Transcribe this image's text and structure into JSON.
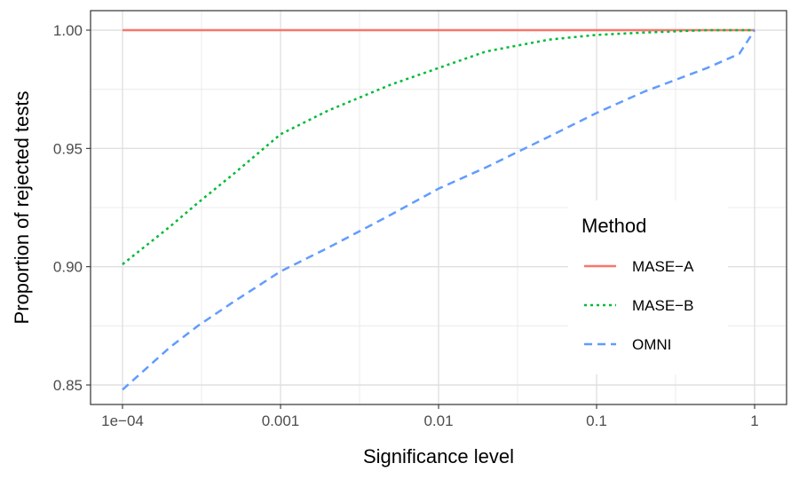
{
  "chart_data": {
    "type": "line",
    "xlabel": "Significance level",
    "ylabel": "Proportion of rejected tests",
    "x_scale": "log10",
    "xlim": [
      0.0001,
      1
    ],
    "ylim": [
      0.85,
      1.0
    ],
    "x_ticks": [
      0.0001,
      0.001,
      0.01,
      0.1,
      1
    ],
    "x_tick_labels": [
      "1e−04",
      "0.001",
      "0.01",
      "0.1",
      "1"
    ],
    "y_ticks": [
      0.85,
      0.9,
      0.95,
      1.0
    ],
    "y_tick_labels": [
      "0.85",
      "0.90",
      "0.95",
      "1.00"
    ],
    "grid": true,
    "legend": {
      "title": "Method",
      "position": "right"
    },
    "series": [
      {
        "name": "MASE−A",
        "color": "#F8766D",
        "dash": "solid",
        "x": [
          0.0001,
          0.001,
          0.01,
          0.1,
          1
        ],
        "y": [
          1.0,
          1.0,
          1.0,
          1.0,
          1.0
        ]
      },
      {
        "name": "MASE−B",
        "color": "#00BA38",
        "dash": "dotted",
        "x": [
          0.0001,
          0.0002,
          0.0003,
          0.0005,
          0.001,
          0.002,
          0.005,
          0.01,
          0.02,
          0.05,
          0.1,
          0.2,
          0.5,
          1
        ],
        "y": [
          0.901,
          0.917,
          0.927,
          0.939,
          0.956,
          0.966,
          0.977,
          0.984,
          0.991,
          0.996,
          0.998,
          0.999,
          1.0,
          1.0
        ]
      },
      {
        "name": "OMNI",
        "color": "#619CFF",
        "dash": "dashed",
        "x": [
          0.0001,
          0.0002,
          0.0003,
          0.0005,
          0.001,
          0.002,
          0.005,
          0.01,
          0.02,
          0.05,
          0.1,
          0.2,
          0.5,
          0.8,
          1
        ],
        "y": [
          0.848,
          0.866,
          0.875,
          0.885,
          0.898,
          0.908,
          0.922,
          0.933,
          0.942,
          0.955,
          0.965,
          0.974,
          0.984,
          0.99,
          1.0
        ]
      }
    ]
  }
}
